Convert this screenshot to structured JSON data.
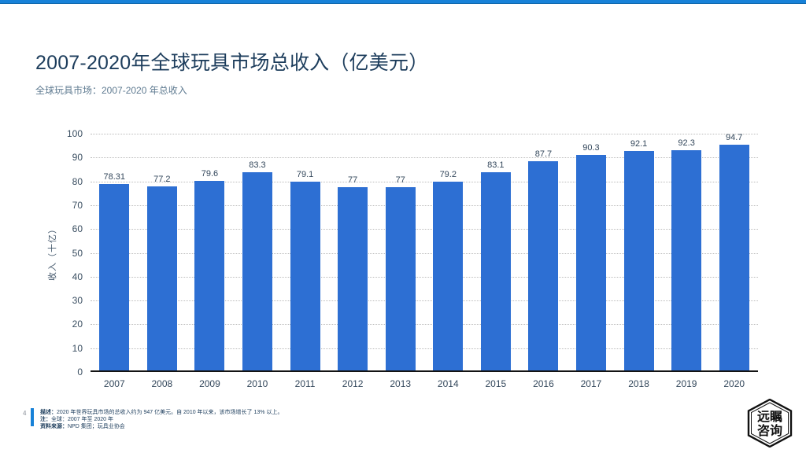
{
  "header": {
    "title": "2007-2020年全球玩具市场总收入（亿美元）",
    "subtitle": "全球玩具市场：2007-2020 年总收入"
  },
  "chart_data": {
    "type": "bar",
    "title": "2007-2020年全球玩具市场总收入（亿美元）",
    "categories": [
      "2007",
      "2008",
      "2009",
      "2010",
      "2011",
      "2012",
      "2013",
      "2014",
      "2015",
      "2016",
      "2017",
      "2018",
      "2019",
      "2020"
    ],
    "values": [
      78.31,
      77.2,
      79.6,
      83.3,
      79.1,
      77,
      77,
      79.2,
      83.1,
      87.7,
      90.3,
      92.1,
      92.3,
      94.7
    ],
    "xlabel": "",
    "ylabel": "收入（十亿）",
    "ylim": [
      0,
      100
    ],
    "ytick_step": 10,
    "grid": "dotted-horizontal",
    "legend": "none",
    "value_labels": "above-bars"
  },
  "footer": {
    "page_number": "4",
    "notes": [
      {
        "label": "描述：",
        "text": "2020 年世界玩具市场的总收入约为 947 亿美元。自 2010 年以来，该市场增长了 13% 以上。"
      },
      {
        "label": "注：",
        "text": "全球：2007 年至 2020 年"
      },
      {
        "label": "资料来源：",
        "text": "NPD 集团；玩具业协会"
      }
    ]
  },
  "logo": {
    "line1": "远瞩",
    "line2": "咨询"
  },
  "colors": {
    "accent": "#1781D8",
    "bar": "#2D6FD3",
    "title": "#1D3D5C",
    "gridline": "#bcbcbc"
  }
}
